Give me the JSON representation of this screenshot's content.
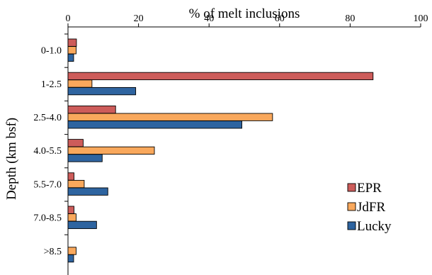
{
  "chart_data": {
    "type": "bar",
    "orientation": "horizontal",
    "xlabel": "% of melt inclusions",
    "ylabel": "Depth (km bsf)",
    "xlim": [
      0,
      100
    ],
    "xticks": [
      0,
      20,
      40,
      60,
      80,
      100
    ],
    "x_axis_position": "top",
    "grid": false,
    "categories": [
      "0-1.0",
      "1-2.5",
      "2.5-4.0",
      "4.0-5.5",
      "5.5-7.0",
      "7.0-8.5",
      ">8.5"
    ],
    "series": [
      {
        "name": "EPR",
        "color": "#cd5c5a",
        "values": [
          2.4,
          86.5,
          13.5,
          4.3,
          1.7,
          1.7,
          0
        ]
      },
      {
        "name": "JdFR",
        "color": "#f9a85c",
        "values": [
          2.3,
          6.8,
          58.0,
          24.5,
          4.6,
          2.3,
          2.3
        ]
      },
      {
        "name": "Lucky",
        "color": "#2e64a0",
        "values": [
          1.6,
          19.2,
          49.3,
          9.7,
          11.3,
          8.1,
          1.6
        ]
      }
    ],
    "legend": {
      "placement": "bottom-right"
    }
  }
}
